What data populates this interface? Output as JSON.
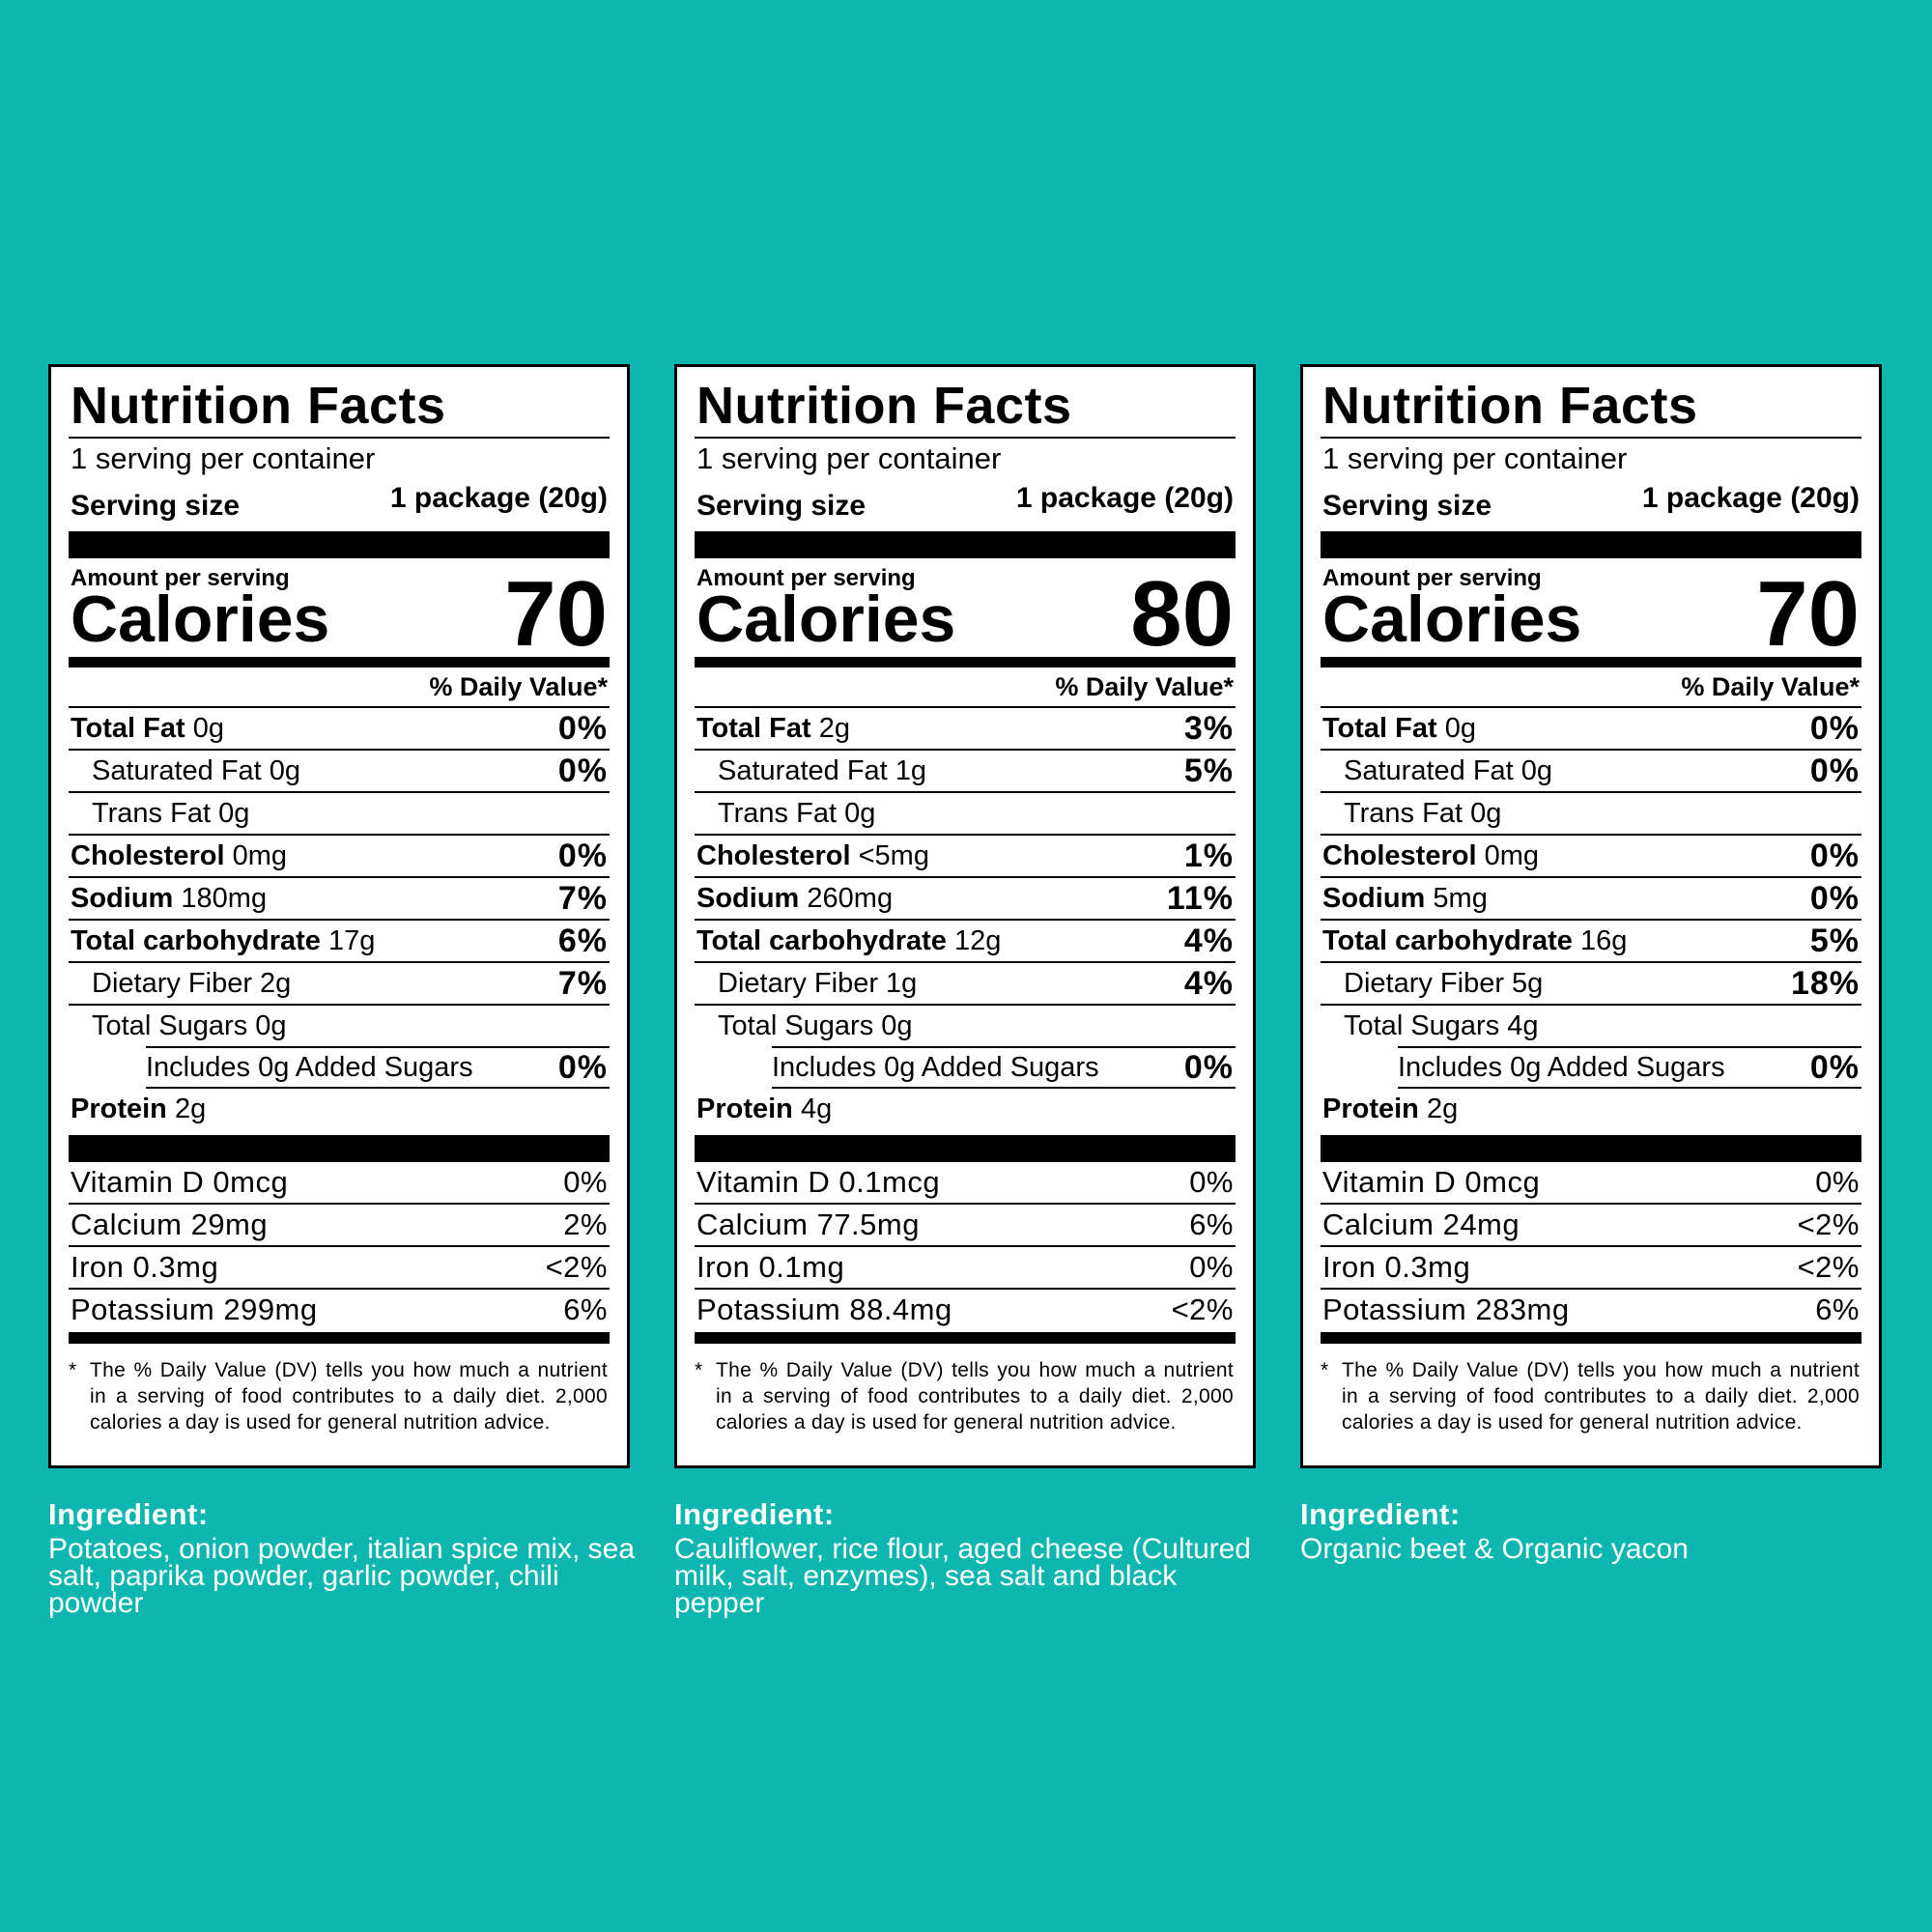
{
  "common": {
    "title": "Nutrition Facts",
    "servings_per_container": "1 serving per container",
    "serving_size_label": "Serving size",
    "serving_size_value": "1 package (20g)",
    "amount_per_serving": "Amount per serving",
    "calories_label": "Calories",
    "daily_value_header": "% Daily Value*",
    "footnote_asterisk": "*",
    "footnote": "The % Daily Value (DV) tells you how much a nutrient in a serving of food contributes to a daily diet. 2,000 calories a day is used for general nutrition advice.",
    "ingredient_heading": "Ingredient:"
  },
  "labels": [
    {
      "calories": "70",
      "total_fat_label": "Total Fat",
      "total_fat_amt": "0g",
      "total_fat_dv": "0%",
      "sat_fat": "Saturated Fat 0g",
      "sat_fat_dv": "0%",
      "trans_fat": "Trans Fat 0g",
      "cholesterol_label": "Cholesterol",
      "cholesterol_amt": "0mg",
      "cholesterol_dv": "0%",
      "sodium_label": "Sodium",
      "sodium_amt": "180mg",
      "sodium_dv": "7%",
      "carb_label": "Total carbohydrate",
      "carb_amt": "17g",
      "carb_dv": "6%",
      "fiber": "Dietary Fiber 2g",
      "fiber_dv": "7%",
      "sugars": "Total Sugars 0g",
      "added_sugars": "Includes 0g Added Sugars",
      "added_sugars_dv": "0%",
      "protein_label": "Protein",
      "protein_amt": "2g",
      "vitamin_d": "Vitamin D 0mcg",
      "vitamin_d_dv": "0%",
      "calcium": "Calcium 29mg",
      "calcium_dv": "2%",
      "iron": "Iron 0.3mg",
      "iron_dv": "<2%",
      "potassium": "Potassium 299mg",
      "potassium_dv": "6%",
      "ingredients": "Potatoes, onion powder, italian spice mix, sea salt, paprika powder, garlic powder, chili powder"
    },
    {
      "calories": "80",
      "total_fat_label": "Total Fat",
      "total_fat_amt": "2g",
      "total_fat_dv": "3%",
      "sat_fat": "Saturated Fat 1g",
      "sat_fat_dv": "5%",
      "trans_fat": "Trans Fat 0g",
      "cholesterol_label": "Cholesterol",
      "cholesterol_amt": "<5mg",
      "cholesterol_dv": "1%",
      "sodium_label": "Sodium",
      "sodium_amt": "260mg",
      "sodium_dv": "11%",
      "carb_label": "Total carbohydrate",
      "carb_amt": "12g",
      "carb_dv": "4%",
      "fiber": "Dietary Fiber 1g",
      "fiber_dv": "4%",
      "sugars": "Total Sugars 0g",
      "added_sugars": "Includes 0g Added Sugars",
      "added_sugars_dv": "0%",
      "protein_label": "Protein",
      "protein_amt": "4g",
      "vitamin_d": "Vitamin D 0.1mcg",
      "vitamin_d_dv": "0%",
      "calcium": "Calcium 77.5mg",
      "calcium_dv": "6%",
      "iron": "Iron 0.1mg",
      "iron_dv": "0%",
      "potassium": "Potassium 88.4mg",
      "potassium_dv": "<2%",
      "ingredients": "Cauliflower, rice flour, aged cheese (Cultured milk, salt, enzymes), sea salt and black pepper"
    },
    {
      "calories": "70",
      "total_fat_label": "Total Fat",
      "total_fat_amt": "0g",
      "total_fat_dv": "0%",
      "sat_fat": "Saturated Fat 0g",
      "sat_fat_dv": "0%",
      "trans_fat": "Trans Fat 0g",
      "cholesterol_label": "Cholesterol",
      "cholesterol_amt": "0mg",
      "cholesterol_dv": "0%",
      "sodium_label": "Sodium",
      "sodium_amt": "5mg",
      "sodium_dv": "0%",
      "carb_label": "Total carbohydrate",
      "carb_amt": "16g",
      "carb_dv": "5%",
      "fiber": "Dietary Fiber 5g",
      "fiber_dv": "18%",
      "sugars": "Total Sugars 4g",
      "added_sugars": "Includes 0g Added Sugars",
      "added_sugars_dv": "0%",
      "protein_label": "Protein",
      "protein_amt": "2g",
      "vitamin_d": "Vitamin D 0mcg",
      "vitamin_d_dv": "0%",
      "calcium": "Calcium 24mg",
      "calcium_dv": "<2%",
      "iron": "Iron 0.3mg",
      "iron_dv": "<2%",
      "potassium": "Potassium 283mg",
      "potassium_dv": "6%",
      "ingredients": "Organic beet & Organic yacon"
    }
  ]
}
